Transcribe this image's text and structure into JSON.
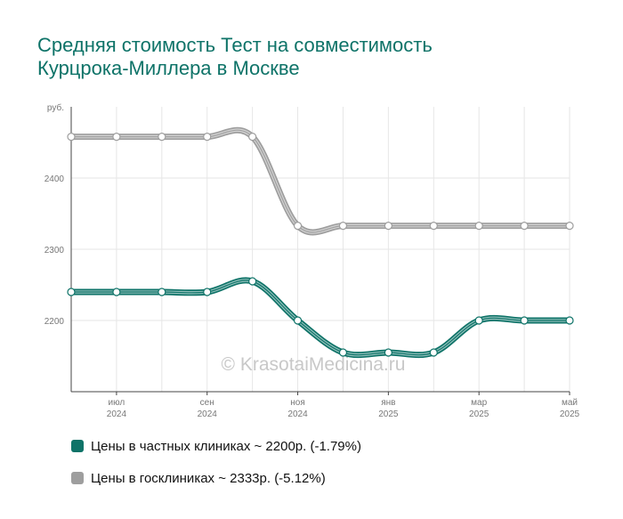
{
  "chart_data": {
    "type": "line",
    "title": [
      "Средняя стоимость Тест на совместимость",
      "Курцрока-Миллера в Москве"
    ],
    "ylabel": "руб.",
    "ylim": [
      2100,
      2500
    ],
    "yticks": [
      2200,
      2300,
      2400
    ],
    "x_ticks": [
      {
        "index": 1,
        "month": "июл",
        "year": "2024"
      },
      {
        "index": 3,
        "month": "сен",
        "year": "2024"
      },
      {
        "index": 5,
        "month": "ноя",
        "year": "2024"
      },
      {
        "index": 7,
        "month": "янв",
        "year": "2025"
      },
      {
        "index": 9,
        "month": "мар",
        "year": "2025"
      },
      {
        "index": 11,
        "month": "май",
        "year": "2025"
      }
    ],
    "point_count": 12,
    "grid": true,
    "watermark": "© KrasotaiMedicina.ru",
    "series": [
      {
        "name": "Цены в госклиниках",
        "legend": "Цены в госклиниках ~ 2333р. (-5.12%)",
        "color": "#9e9e9e",
        "values": [
          2458,
          2458,
          2458,
          2458,
          2458,
          2333,
          2333,
          2333,
          2333,
          2333,
          2333,
          2333
        ]
      },
      {
        "name": "Цены в частных клиниках",
        "legend": "Цены в частных клиниках ~ 2200р. (-1.79%)",
        "color": "#0e7368",
        "values": [
          2240,
          2240,
          2240,
          2240,
          2255,
          2200,
          2155,
          2155,
          2155,
          2200,
          2200,
          2200
        ]
      }
    ],
    "legend_order": [
      1,
      0
    ]
  }
}
